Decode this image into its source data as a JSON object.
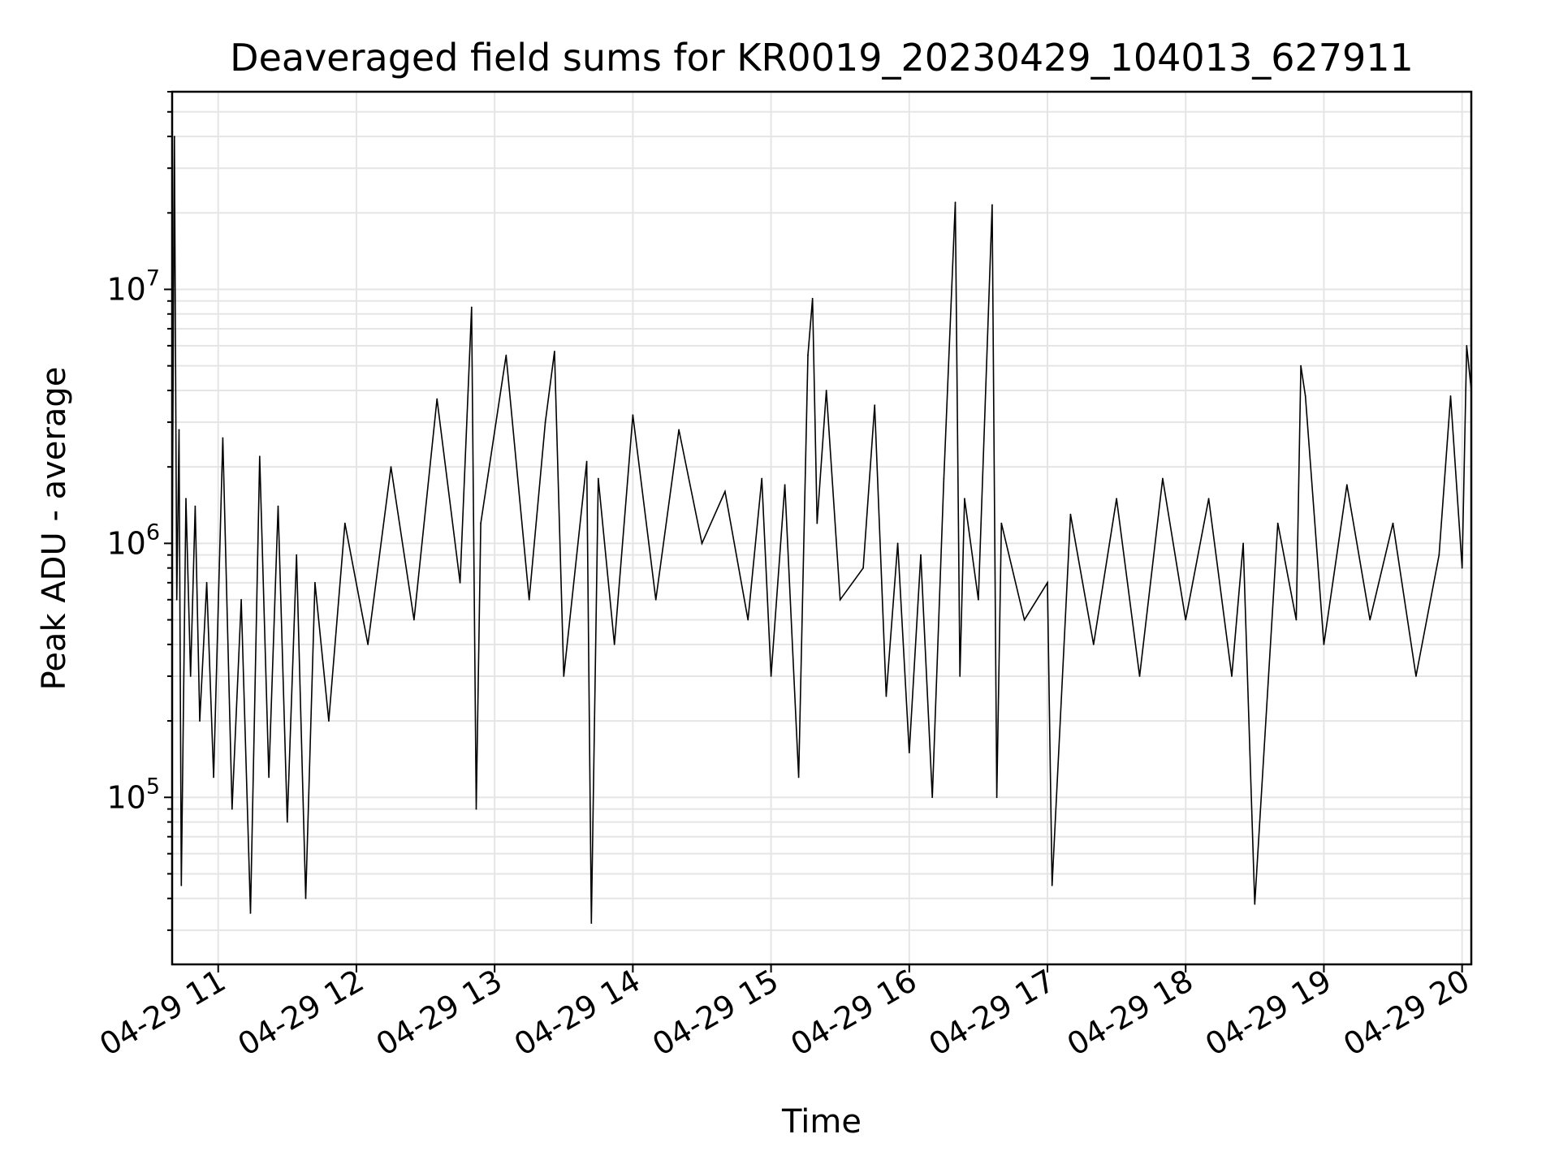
{
  "chart_data": {
    "type": "line",
    "title": "Deaveraged field sums for KR0019_20230429_104013_627911",
    "xlabel": "Time",
    "ylabel": "Peak ADU - average",
    "y_scale": "log",
    "ylim": [
      22000,
      60000000
    ],
    "xlim": [
      "2023-04-29 10:40",
      "2023-04-29 20:04"
    ],
    "grid": true,
    "line_color": "#000000",
    "grid_color": "#e5e5e5",
    "x_ticks": [
      {
        "label": "04-29 11",
        "time": "2023-04-29 11:00"
      },
      {
        "label": "04-29 12",
        "time": "2023-04-29 12:00"
      },
      {
        "label": "04-29 13",
        "time": "2023-04-29 13:00"
      },
      {
        "label": "04-29 14",
        "time": "2023-04-29 14:00"
      },
      {
        "label": "04-29 15",
        "time": "2023-04-29 15:00"
      },
      {
        "label": "04-29 16",
        "time": "2023-04-29 16:00"
      },
      {
        "label": "04-29 17",
        "time": "2023-04-29 17:00"
      },
      {
        "label": "04-29 18",
        "time": "2023-04-29 18:00"
      },
      {
        "label": "04-29 19",
        "time": "2023-04-29 19:00"
      },
      {
        "label": "04-29 20",
        "time": "2023-04-29 20:00"
      }
    ],
    "y_ticks": [
      {
        "base": "10",
        "exp": "5",
        "value": 100000
      },
      {
        "base": "10",
        "exp": "6",
        "value": 1000000
      },
      {
        "base": "10",
        "exp": "7",
        "value": 10000000
      }
    ],
    "series": [
      {
        "x": [
          "2023-04-29 10:40",
          "2023-04-29 10:41",
          "2023-04-29 10:42",
          "2023-04-29 10:43",
          "2023-04-29 10:44",
          "2023-04-29 10:46",
          "2023-04-29 10:48",
          "2023-04-29 10:50",
          "2023-04-29 10:52",
          "2023-04-29 10:55",
          "2023-04-29 10:58",
          "2023-04-29 11:02",
          "2023-04-29 11:06",
          "2023-04-29 11:10",
          "2023-04-29 11:14",
          "2023-04-29 11:18",
          "2023-04-29 11:22",
          "2023-04-29 11:26",
          "2023-04-29 11:30",
          "2023-04-29 11:34",
          "2023-04-29 11:38",
          "2023-04-29 11:42",
          "2023-04-29 11:48",
          "2023-04-29 11:55",
          "2023-04-29 12:05",
          "2023-04-29 12:15",
          "2023-04-29 12:25",
          "2023-04-29 12:35",
          "2023-04-29 12:45",
          "2023-04-29 12:50",
          "2023-04-29 12:52",
          "2023-04-29 12:54",
          "2023-04-29 13:05",
          "2023-04-29 13:15",
          "2023-04-29 13:22",
          "2023-04-29 13:26",
          "2023-04-29 13:30",
          "2023-04-29 13:40",
          "2023-04-29 13:42",
          "2023-04-29 13:45",
          "2023-04-29 13:52",
          "2023-04-29 14:00",
          "2023-04-29 14:10",
          "2023-04-29 14:20",
          "2023-04-29 14:30",
          "2023-04-29 14:40",
          "2023-04-29 14:50",
          "2023-04-29 14:56",
          "2023-04-29 15:00",
          "2023-04-29 15:06",
          "2023-04-29 15:12",
          "2023-04-29 15:16",
          "2023-04-29 15:18",
          "2023-04-29 15:20",
          "2023-04-29 15:24",
          "2023-04-29 15:30",
          "2023-04-29 15:40",
          "2023-04-29 15:45",
          "2023-04-29 15:50",
          "2023-04-29 15:55",
          "2023-04-29 16:00",
          "2023-04-29 16:05",
          "2023-04-29 16:10",
          "2023-04-29 16:15",
          "2023-04-29 16:20",
          "2023-04-29 16:22",
          "2023-04-29 16:24",
          "2023-04-29 16:30",
          "2023-04-29 16:36",
          "2023-04-29 16:38",
          "2023-04-29 16:40",
          "2023-04-29 16:50",
          "2023-04-29 17:00",
          "2023-04-29 17:02",
          "2023-04-29 17:10",
          "2023-04-29 17:20",
          "2023-04-29 17:30",
          "2023-04-29 17:40",
          "2023-04-29 17:50",
          "2023-04-29 18:00",
          "2023-04-29 18:10",
          "2023-04-29 18:20",
          "2023-04-29 18:25",
          "2023-04-29 18:30",
          "2023-04-29 18:40",
          "2023-04-29 18:48",
          "2023-04-29 18:50",
          "2023-04-29 18:52",
          "2023-04-29 19:00",
          "2023-04-29 19:10",
          "2023-04-29 19:20",
          "2023-04-29 19:30",
          "2023-04-29 19:40",
          "2023-04-29 19:50",
          "2023-04-29 19:55",
          "2023-04-29 20:00",
          "2023-04-29 20:02",
          "2023-04-29 20:04"
        ],
        "y": [
          800000,
          40000000,
          600000,
          2800000,
          45000,
          1500000,
          300000,
          1400000,
          200000,
          700000,
          120000,
          2600000,
          90000,
          600000,
          35000,
          2200000,
          120000,
          1400000,
          80000,
          900000,
          40000,
          700000,
          200000,
          1200000,
          400000,
          2000000,
          500000,
          3700000,
          700000,
          8500000,
          90000,
          1200000,
          5500000,
          600000,
          3000000,
          5700000,
          300000,
          2100000,
          32000,
          1800000,
          400000,
          3200000,
          600000,
          2800000,
          1000000,
          1600000,
          500000,
          1800000,
          300000,
          1700000,
          120000,
          5500000,
          9200000,
          1200000,
          4000000,
          600000,
          800000,
          3500000,
          250000,
          1000000,
          150000,
          900000,
          100000,
          1800000,
          22000000,
          300000,
          1500000,
          600000,
          21500000,
          100000,
          1200000,
          500000,
          700000,
          45000,
          1300000,
          400000,
          1500000,
          300000,
          1800000,
          500000,
          1500000,
          300000,
          1000000,
          38000,
          1200000,
          500000,
          5000000,
          3800000,
          400000,
          1700000,
          500000,
          1200000,
          300000,
          900000,
          3800000,
          800000,
          6000000,
          4000000
        ]
      }
    ]
  }
}
